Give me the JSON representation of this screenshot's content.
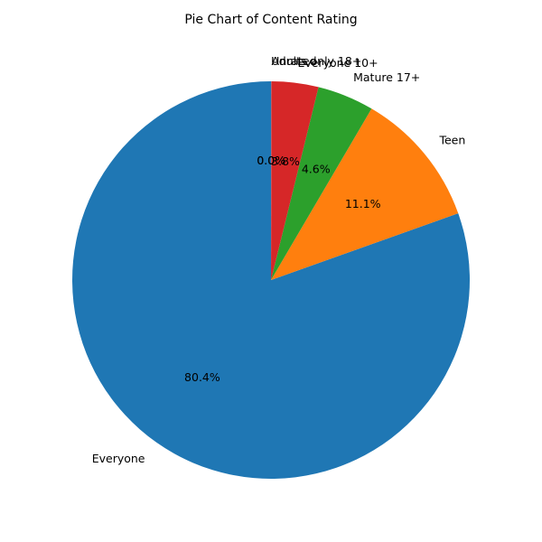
{
  "chart_data": {
    "type": "pie",
    "title": "Pie Chart of Content Rating",
    "start_angle_deg": 90,
    "direction": "counterclockwise",
    "slices": [
      {
        "label": "Everyone",
        "pct_label": "80.4%",
        "value": 80.4,
        "color": "#1f77b4"
      },
      {
        "label": "Teen",
        "pct_label": "11.1%",
        "value": 11.1,
        "color": "#ff7f0e"
      },
      {
        "label": "Mature 17+",
        "pct_label": "4.6%",
        "value": 4.6,
        "color": "#2ca02c"
      },
      {
        "label": "Everyone 10+",
        "pct_label": "3.8%",
        "value": 3.8,
        "color": "#d62728"
      },
      {
        "label": "Adults only 18+",
        "pct_label": "0.0%",
        "value": 0.02,
        "color": "#9467bd"
      },
      {
        "label": "Unrated",
        "pct_label": "0.0%",
        "value": 0.02,
        "color": "#8c564b"
      }
    ]
  }
}
